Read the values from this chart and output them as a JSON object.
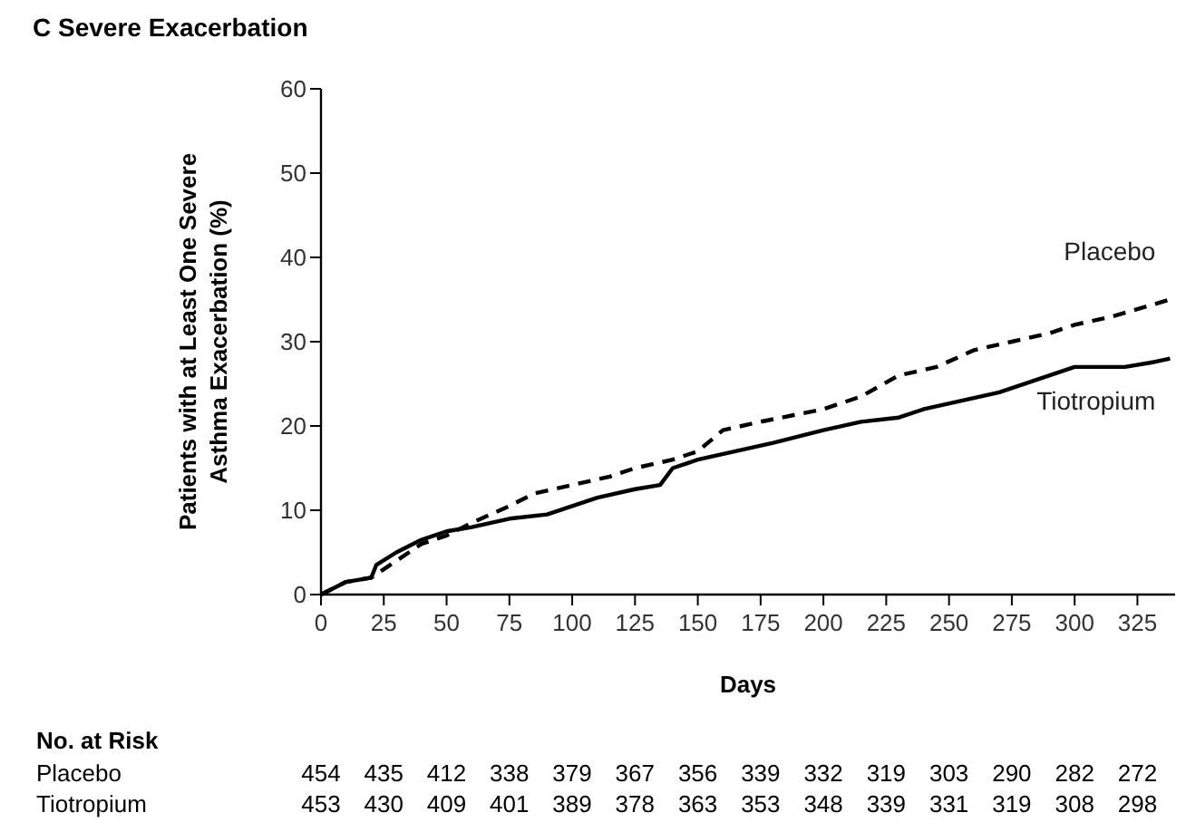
{
  "chart_data": {
    "type": "line",
    "title": "C  Severe Exacerbation",
    "xlabel": "Days",
    "ylabel": "Patients with at Least One Severe\nAsthma Exacerbation (%)",
    "xlim": [
      0,
      340
    ],
    "xticks": [
      0,
      25,
      50,
      75,
      100,
      125,
      150,
      175,
      200,
      225,
      250,
      275,
      300,
      325
    ],
    "ylim": [
      0,
      60
    ],
    "yticks": [
      0,
      10,
      20,
      30,
      40,
      50,
      60
    ],
    "grid": false,
    "marker": "none",
    "series": [
      {
        "name": "Placebo",
        "color": "#000000",
        "line_style": "dashed",
        "x": [
          0,
          10,
          20,
          25,
          35,
          40,
          50,
          60,
          75,
          85,
          100,
          115,
          125,
          140,
          150,
          160,
          175,
          200,
          215,
          230,
          245,
          260,
          275,
          290,
          300,
          315,
          338
        ],
        "values": [
          0,
          1.5,
          2,
          3,
          5,
          6,
          7,
          8.5,
          10.5,
          12,
          13,
          14,
          15,
          16,
          17,
          19.5,
          20.5,
          22,
          23.5,
          26,
          27,
          29,
          30,
          31,
          32,
          33,
          35
        ]
      },
      {
        "name": "Tiotropium",
        "color": "#000000",
        "line_style": "solid",
        "x": [
          0,
          10,
          20,
          22,
          30,
          40,
          50,
          60,
          75,
          90,
          100,
          110,
          125,
          135,
          140,
          150,
          165,
          180,
          200,
          215,
          230,
          240,
          255,
          270,
          285,
          300,
          320,
          330,
          338
        ],
        "values": [
          0,
          1.5,
          2,
          3.5,
          5,
          6.5,
          7.5,
          8,
          9,
          9.5,
          10.5,
          11.5,
          12.5,
          13,
          15,
          16,
          17,
          18,
          19.5,
          20.5,
          21,
          22,
          23,
          24,
          25.5,
          27,
          27,
          27.5,
          28
        ]
      }
    ],
    "annotations": [
      "No. at Risk",
      "Placebo",
      "454 435 412 338 379 367 356 339 332 319 303 290 282 272",
      "Tiotropium",
      "453 430 409 401 389 378 363 353 348 339 331 319 308 298"
    ]
  }
}
